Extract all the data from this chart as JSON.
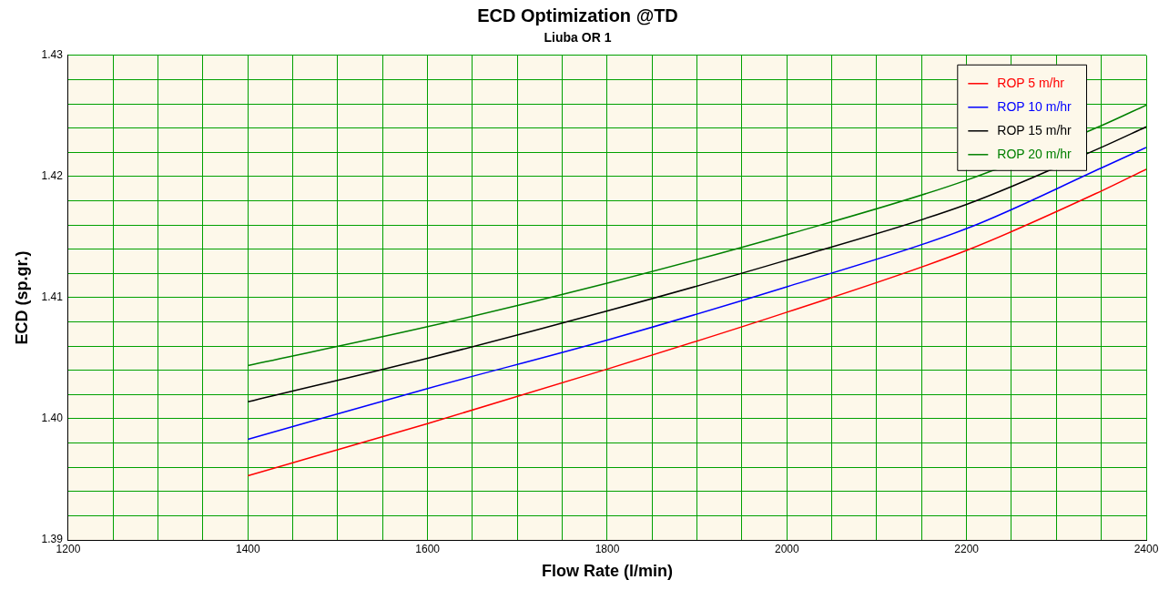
{
  "chart_data": {
    "type": "line",
    "title": "ECD Optimization @TD",
    "subtitle": "Liuba OR 1",
    "xlabel": "Flow Rate (l/min)",
    "ylabel": "ECD (sp.gr.)",
    "x": [
      1400,
      1600,
      1800,
      2000,
      2200,
      2350,
      2400
    ],
    "series": [
      {
        "name": "ROP 5 m/hr",
        "color": "#ff0000",
        "values": [
          1.3953,
          1.3996,
          1.4041,
          1.4088,
          1.4139,
          1.4188,
          1.4206
        ]
      },
      {
        "name": "ROP 10 m/hr",
        "color": "#0000ff",
        "values": [
          1.3983,
          1.4025,
          1.4065,
          1.4109,
          1.4157,
          1.4207,
          1.4224
        ]
      },
      {
        "name": "ROP 15 m/hr",
        "color": "#000000",
        "values": [
          1.4014,
          1.405,
          1.4089,
          1.4131,
          1.4177,
          1.4224,
          1.4241
        ]
      },
      {
        "name": "ROP 20 m/hr",
        "color": "#008000",
        "values": [
          1.4044,
          1.4076,
          1.4112,
          1.4152,
          1.4197,
          1.4242,
          1.4259
        ]
      }
    ],
    "xlim": [
      1200,
      2400
    ],
    "xticks": [
      1200,
      {
        "value": 1250,
        "label": null
      },
      1400,
      {
        "value": 1300,
        "label": null
      },
      {
        "value": 1350,
        "label": null
      },
      {
        "value": 1450,
        "label": null
      },
      1600,
      {
        "value": 1500,
        "label": null
      },
      {
        "value": 1550,
        "label": null
      },
      {
        "value": 1650,
        "label": null
      },
      1800,
      {
        "value": 1700,
        "label": null
      },
      {
        "value": 1750,
        "label": null
      },
      {
        "value": 1850,
        "label": null
      },
      2000,
      {
        "value": 1900,
        "label": null
      },
      {
        "value": 1950,
        "label": null
      },
      {
        "value": 2050,
        "label": null
      },
      2200,
      {
        "value": 2100,
        "label": null
      },
      {
        "value": 2150,
        "label": null
      },
      {
        "value": 2250,
        "label": null
      },
      2400,
      {
        "value": 2300,
        "label": null
      },
      {
        "value": 2350,
        "label": null
      }
    ],
    "ylim": [
      1.39,
      1.43
    ],
    "yticks": [
      1.39,
      {
        "value": 1.392,
        "label": null
      },
      {
        "value": 1.394,
        "label": null
      },
      {
        "value": 1.396,
        "label": null
      },
      {
        "value": 1.398,
        "label": null
      },
      {
        "value": 1.4,
        "label": "1.40"
      },
      {
        "value": 1.402,
        "label": null
      },
      {
        "value": 1.404,
        "label": null
      },
      {
        "value": 1.406,
        "label": null
      },
      {
        "value": 1.408,
        "label": null
      },
      1.41,
      {
        "value": 1.412,
        "label": null
      },
      {
        "value": 1.414,
        "label": null
      },
      {
        "value": 1.416,
        "label": null
      },
      {
        "value": 1.418,
        "label": null
      },
      {
        "value": 1.42,
        "label": "1.42"
      },
      {
        "value": 1.422,
        "label": null
      },
      {
        "value": 1.424,
        "label": null
      },
      {
        "value": 1.426,
        "label": null
      },
      {
        "value": 1.428,
        "label": null
      },
      1.43
    ],
    "grid": true,
    "legend": "top right",
    "marker": "none",
    "line_style": "solid"
  }
}
